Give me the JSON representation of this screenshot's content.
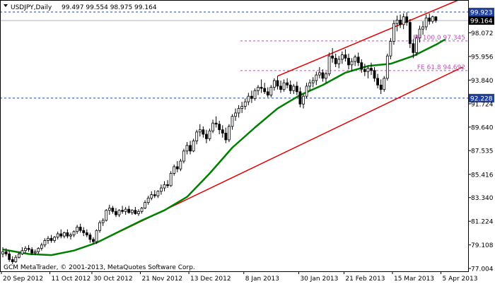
{
  "header": {
    "symbol_label": "USDJPY,Daily",
    "ohlc": "99.497 99.554 98.975 99.164"
  },
  "watermark": "GCM MetaTrader, © 2001-2013, MetaQuotes Software Corp.",
  "colors": {
    "background": "#ffffff",
    "candle": "#000000",
    "moving_average": "#008000",
    "channel": "#e00000",
    "fibo": "#c050c0",
    "hline": "#2040a0",
    "price_box": "#000000",
    "level_box": "#2040a0"
  },
  "chart_data": {
    "type": "candlestick",
    "title": "USDJPY,Daily",
    "ylim": [
      77.004,
      101.0
    ],
    "y_ticks": [
      "98.072",
      "95.956",
      "93.840",
      "91.724",
      "89.640",
      "87.535",
      "85.416",
      "83.340",
      "81.224",
      "79.108",
      "77.004"
    ],
    "x_ticks": [
      "20 Sep 2012",
      "11 Oct 2012",
      "30 Oct 2012",
      "21 Nov 2012",
      "13 Dec 2012",
      "8 Jan 2013",
      "30 Jan 2013",
      "21 Feb 2013",
      "15 Mar 2013",
      "5 Apr 2013"
    ],
    "current_price": "99.164",
    "horizontal_levels": [
      {
        "label": "99.923",
        "value": 99.923
      },
      {
        "label": "92.228",
        "value": 92.228
      }
    ],
    "fibo_levels": [
      {
        "label": "FE 100.0 97.345",
        "value": 97.345
      },
      {
        "label": "FE 61.8 94.692",
        "value": 94.692
      }
    ],
    "channel": {
      "upper": {
        "from": [
          29,
          79.3
        ],
        "to": [
          141,
          101.0
        ]
      },
      "lower": {
        "from": [
          29,
          79.3
        ],
        "to": [
          141,
          95.2
        ]
      },
      "upper_start": [
        85,
        94.2
      ]
    },
    "moving_average": [
      [
        0,
        78.7
      ],
      [
        8,
        78.3
      ],
      [
        15,
        78.2
      ],
      [
        22,
        78.6
      ],
      [
        29,
        79.3
      ],
      [
        36,
        80.3
      ],
      [
        43,
        81.3
      ],
      [
        50,
        82.2
      ],
      [
        57,
        83.4
      ],
      [
        64,
        85.5
      ],
      [
        71,
        87.8
      ],
      [
        78,
        89.6
      ],
      [
        85,
        91.3
      ],
      [
        92,
        92.5
      ],
      [
        99,
        93.4
      ],
      [
        106,
        94.5
      ],
      [
        113,
        95.1
      ],
      [
        120,
        95.3
      ],
      [
        127,
        96.0
      ],
      [
        134,
        97.0
      ],
      [
        137,
        97.5
      ]
    ],
    "candles": [
      [
        78.3,
        78.9,
        78.0,
        78.5
      ],
      [
        78.5,
        78.8,
        78.1,
        78.3
      ],
      [
        78.3,
        78.6,
        77.6,
        77.8
      ],
      [
        77.8,
        78.1,
        77.4,
        77.6
      ],
      [
        77.6,
        78.2,
        77.5,
        78.0
      ],
      [
        78.0,
        78.5,
        77.9,
        78.3
      ],
      [
        78.3,
        78.9,
        78.2,
        78.6
      ],
      [
        78.6,
        79.0,
        78.4,
        78.8
      ],
      [
        78.8,
        79.1,
        78.5,
        78.7
      ],
      [
        78.7,
        78.9,
        78.2,
        78.4
      ],
      [
        78.4,
        78.7,
        78.2,
        78.5
      ],
      [
        78.5,
        78.9,
        78.3,
        78.8
      ],
      [
        78.8,
        79.3,
        78.6,
        79.1
      ],
      [
        79.1,
        79.7,
        78.9,
        79.5
      ],
      [
        79.5,
        79.9,
        79.2,
        79.7
      ],
      [
        79.7,
        80.0,
        79.3,
        79.5
      ],
      [
        79.5,
        79.9,
        79.3,
        79.8
      ],
      [
        79.8,
        80.3,
        79.6,
        80.1
      ],
      [
        80.1,
        80.5,
        79.7,
        79.9
      ],
      [
        79.9,
        80.3,
        79.7,
        80.2
      ],
      [
        80.2,
        80.5,
        79.7,
        79.9
      ],
      [
        79.9,
        80.2,
        79.6,
        80.0
      ],
      [
        80.0,
        80.4,
        79.8,
        80.3
      ],
      [
        80.3,
        80.9,
        80.1,
        80.7
      ],
      [
        80.7,
        81.0,
        80.2,
        80.4
      ],
      [
        80.4,
        80.7,
        79.9,
        80.2
      ],
      [
        80.2,
        80.5,
        79.8,
        80.0
      ],
      [
        80.0,
        80.2,
        79.3,
        79.6
      ],
      [
        79.6,
        79.8,
        79.2,
        79.4
      ],
      [
        79.4,
        80.5,
        79.2,
        80.4
      ],
      [
        80.4,
        81.3,
        80.2,
        81.1
      ],
      [
        81.1,
        81.5,
        80.8,
        81.3
      ],
      [
        81.3,
        82.3,
        81.2,
        82.2
      ],
      [
        82.2,
        82.7,
        81.8,
        82.4
      ],
      [
        82.4,
        82.6,
        81.9,
        82.1
      ],
      [
        82.1,
        82.4,
        81.6,
        81.8
      ],
      [
        81.8,
        82.3,
        81.6,
        82.2
      ],
      [
        82.2,
        82.6,
        81.9,
        82.1
      ],
      [
        82.1,
        82.5,
        81.8,
        82.3
      ],
      [
        82.3,
        82.6,
        81.9,
        82.0
      ],
      [
        82.0,
        82.3,
        81.8,
        82.2
      ],
      [
        82.2,
        82.5,
        81.8,
        81.9
      ],
      [
        81.9,
        82.3,
        81.7,
        82.1
      ],
      [
        82.1,
        82.5,
        81.9,
        82.4
      ],
      [
        82.4,
        83.1,
        82.3,
        82.9
      ],
      [
        82.9,
        83.5,
        82.7,
        83.3
      ],
      [
        83.3,
        83.9,
        83.1,
        83.6
      ],
      [
        83.6,
        84.0,
        83.3,
        83.5
      ],
      [
        83.5,
        84.0,
        83.3,
        83.9
      ],
      [
        83.9,
        84.5,
        83.6,
        84.2
      ],
      [
        84.2,
        84.8,
        83.9,
        84.5
      ],
      [
        84.5,
        84.9,
        84.2,
        84.4
      ],
      [
        84.4,
        85.7,
        84.3,
        85.5
      ],
      [
        85.5,
        86.3,
        85.3,
        86.1
      ],
      [
        86.1,
        86.6,
        85.6,
        85.9
      ],
      [
        85.9,
        86.8,
        85.7,
        86.6
      ],
      [
        86.6,
        87.7,
        86.4,
        87.5
      ],
      [
        87.5,
        88.3,
        87.2,
        88.0
      ],
      [
        88.0,
        88.4,
        87.2,
        87.5
      ],
      [
        87.5,
        88.6,
        87.4,
        88.4
      ],
      [
        88.4,
        89.4,
        88.1,
        89.2
      ],
      [
        89.2,
        89.9,
        88.8,
        89.4
      ],
      [
        89.4,
        89.7,
        88.7,
        89.0
      ],
      [
        89.0,
        89.4,
        88.2,
        88.6
      ],
      [
        88.6,
        89.5,
        88.4,
        89.3
      ],
      [
        89.3,
        90.3,
        89.1,
        90.0
      ],
      [
        90.0,
        90.6,
        89.6,
        89.9
      ],
      [
        89.9,
        90.2,
        89.0,
        89.4
      ],
      [
        89.4,
        89.8,
        88.7,
        89.1
      ],
      [
        89.1,
        89.6,
        88.2,
        88.5
      ],
      [
        88.5,
        89.9,
        88.3,
        89.7
      ],
      [
        89.7,
        90.8,
        89.4,
        90.6
      ],
      [
        90.6,
        91.3,
        90.2,
        90.9
      ],
      [
        90.9,
        91.6,
        90.5,
        91.3
      ],
      [
        91.3,
        91.9,
        90.9,
        91.5
      ],
      [
        91.5,
        92.2,
        91.2,
        91.9
      ],
      [
        91.9,
        92.7,
        91.6,
        92.4
      ],
      [
        92.4,
        92.9,
        91.8,
        92.2
      ],
      [
        92.2,
        93.1,
        92.0,
        92.9
      ],
      [
        92.9,
        93.4,
        92.5,
        93.2
      ],
      [
        93.2,
        93.9,
        92.7,
        93.1
      ],
      [
        93.1,
        93.6,
        92.6,
        92.8
      ],
      [
        92.8,
        93.2,
        92.3,
        92.5
      ],
      [
        92.5,
        93.4,
        92.3,
        93.2
      ],
      [
        93.2,
        94.0,
        92.9,
        93.8
      ],
      [
        93.8,
        94.2,
        93.0,
        93.3
      ],
      [
        93.3,
        93.8,
        92.7,
        93.0
      ],
      [
        93.0,
        93.9,
        92.8,
        93.6
      ],
      [
        93.6,
        94.0,
        93.1,
        93.4
      ],
      [
        93.4,
        93.8,
        92.6,
        92.9
      ],
      [
        92.9,
        93.5,
        92.6,
        93.3
      ],
      [
        93.3,
        93.7,
        92.5,
        92.8
      ],
      [
        92.8,
        93.2,
        91.4,
        91.7
      ],
      [
        91.7,
        92.6,
        91.3,
        92.4
      ],
      [
        92.4,
        93.6,
        92.2,
        93.3
      ],
      [
        93.3,
        93.9,
        92.9,
        93.6
      ],
      [
        93.6,
        94.1,
        93.2,
        93.8
      ],
      [
        93.8,
        94.6,
        93.4,
        94.3
      ],
      [
        94.3,
        95.0,
        94.0,
        94.5
      ],
      [
        94.5,
        94.8,
        93.7,
        94.0
      ],
      [
        94.0,
        94.6,
        93.6,
        94.4
      ],
      [
        94.4,
        96.3,
        94.2,
        96.0
      ],
      [
        96.0,
        96.7,
        95.4,
        95.8
      ],
      [
        95.8,
        96.2,
        95.0,
        95.3
      ],
      [
        95.3,
        96.0,
        94.9,
        95.7
      ],
      [
        95.7,
        96.4,
        95.3,
        96.1
      ],
      [
        96.1,
        96.6,
        95.5,
        95.8
      ],
      [
        95.8,
        96.2,
        94.8,
        95.2
      ],
      [
        95.2,
        95.8,
        94.6,
        95.5
      ],
      [
        95.5,
        96.1,
        95.1,
        95.9
      ],
      [
        95.9,
        96.3,
        95.1,
        95.4
      ],
      [
        95.4,
        95.7,
        94.5,
        94.8
      ],
      [
        94.8,
        95.3,
        94.2,
        94.6
      ],
      [
        94.6,
        95.1,
        94.0,
        94.9
      ],
      [
        94.9,
        95.4,
        94.3,
        94.7
      ],
      [
        94.7,
        95.0,
        93.7,
        94.0
      ],
      [
        94.0,
        94.4,
        93.1,
        93.4
      ],
      [
        93.4,
        93.9,
        92.6,
        93.0
      ],
      [
        93.0,
        94.2,
        92.8,
        94.0
      ],
      [
        94.0,
        96.2,
        93.8,
        96.0
      ],
      [
        96.0,
        97.6,
        95.7,
        97.3
      ],
      [
        97.3,
        99.2,
        97.0,
        98.9
      ],
      [
        98.9,
        99.6,
        98.2,
        99.2
      ],
      [
        99.2,
        99.7,
        98.5,
        98.8
      ],
      [
        98.8,
        99.8,
        98.4,
        99.5
      ],
      [
        99.5,
        99.9,
        98.7,
        99.0
      ],
      [
        99.0,
        99.3,
        96.7,
        97.1
      ],
      [
        97.1,
        97.5,
        95.8,
        96.3
      ],
      [
        96.3,
        97.9,
        96.0,
        97.6
      ],
      [
        97.6,
        98.7,
        97.2,
        98.4
      ],
      [
        98.4,
        99.1,
        97.9,
        98.6
      ],
      [
        98.6,
        99.7,
        98.3,
        99.4
      ],
      [
        99.4,
        99.8,
        98.8,
        99.1
      ],
      [
        99.1,
        99.6,
        98.9,
        99.5
      ],
      [
        99.497,
        99.554,
        98.975,
        99.164
      ]
    ]
  }
}
